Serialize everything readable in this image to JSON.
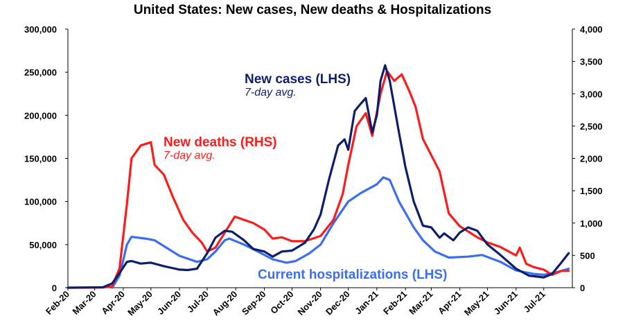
{
  "chart_data": {
    "type": "line",
    "title": "United States: New cases, New deaths & Hospitalizations",
    "x_ticks": [
      "Feb-20",
      "Mar-20",
      "Apr-20",
      "May-20",
      "Jun-20",
      "Jul-20",
      "Aug-20",
      "Sep-20",
      "Oct-20",
      "Nov-20",
      "Dec-20",
      "Jan-21",
      "Feb-21",
      "Mar-21",
      "Apr-21",
      "May-21",
      "Jun-21",
      "Jul-21"
    ],
    "x_range": [
      "2020-02-01",
      "2021-08-01"
    ],
    "y_left": {
      "min": 0,
      "max": 300000,
      "step": 50000,
      "tick_labels": [
        "0",
        "50,000",
        "100,000",
        "150,000",
        "200,000",
        "250,000",
        "300,000"
      ]
    },
    "y_right": {
      "min": 0,
      "max": 4000,
      "step": 500,
      "tick_labels": [
        "0",
        "500",
        "1,000",
        "1,500",
        "2,000",
        "2,500",
        "3,000",
        "3,500",
        "4,000"
      ]
    },
    "annotations": {
      "cases": "New cases (LHS)",
      "cases_sub": "7-day avg.",
      "deaths": "New deaths (RHS)",
      "deaths_sub": "7-day avg.",
      "hosp": "Current hospitalizations (LHS)"
    },
    "colors": {
      "cases": "#0d1f6b",
      "deaths": "#ff1a1a",
      "hosp": "#3a6df0"
    },
    "series": [
      {
        "name": "New cases (LHS)",
        "axis": "left",
        "color": "#0d1f6b",
        "points": [
          [
            "2020-02-01",
            0
          ],
          [
            "2020-03-10",
            500
          ],
          [
            "2020-03-20",
            5000
          ],
          [
            "2020-03-28",
            17000
          ],
          [
            "2020-04-05",
            30000
          ],
          [
            "2020-04-10",
            31000
          ],
          [
            "2020-04-20",
            28000
          ],
          [
            "2020-05-01",
            29000
          ],
          [
            "2020-05-15",
            25000
          ],
          [
            "2020-06-01",
            21000
          ],
          [
            "2020-06-10",
            20500
          ],
          [
            "2020-06-20",
            22000
          ],
          [
            "2020-07-01",
            40000
          ],
          [
            "2020-07-10",
            58000
          ],
          [
            "2020-07-20",
            66000
          ],
          [
            "2020-07-28",
            65000
          ],
          [
            "2020-08-10",
            55000
          ],
          [
            "2020-08-20",
            45000
          ],
          [
            "2020-09-01",
            42000
          ],
          [
            "2020-09-10",
            36000
          ],
          [
            "2020-09-20",
            42000
          ],
          [
            "2020-10-01",
            43000
          ],
          [
            "2020-10-15",
            52000
          ],
          [
            "2020-10-25",
            68000
          ],
          [
            "2020-11-01",
            85000
          ],
          [
            "2020-11-10",
            125000
          ],
          [
            "2020-11-20,",
            165000
          ],
          [
            "2020-11-27",
            172000
          ],
          [
            "2020-12-01",
            160000
          ],
          [
            "2020-12-08",
            205000
          ],
          [
            "2020-12-15",
            214000
          ],
          [
            "2020-12-20",
            220000
          ],
          [
            "2020-12-27",
            180000
          ],
          [
            "2021-01-01",
            200000
          ],
          [
            "2021-01-05",
            240000
          ],
          [
            "2021-01-10",
            258000
          ],
          [
            "2021-01-15",
            240000
          ],
          [
            "2021-01-25",
            180000
          ],
          [
            "2021-02-01",
            140000
          ],
          [
            "2021-02-10",
            100000
          ],
          [
            "2021-02-20",
            72000
          ],
          [
            "2021-03-01",
            70000
          ],
          [
            "2021-03-10",
            58000
          ],
          [
            "2021-03-15",
            63000
          ],
          [
            "2021-03-25",
            55000
          ],
          [
            "2021-04-01",
            64000
          ],
          [
            "2021-04-10",
            70000
          ],
          [
            "2021-04-20",
            66000
          ],
          [
            "2021-05-01",
            50000
          ],
          [
            "2021-05-15",
            38000
          ],
          [
            "2021-06-01",
            22000
          ],
          [
            "2021-06-15",
            14000
          ],
          [
            "2021-07-01",
            12000
          ],
          [
            "2021-07-10",
            16000
          ],
          [
            "2021-07-20",
            29000
          ],
          [
            "2021-07-28",
            40000
          ]
        ]
      },
      {
        "name": "New deaths (RHS)",
        "axis": "right",
        "color": "#ff1a1a",
        "points": [
          [
            "2020-02-01",
            0
          ],
          [
            "2020-03-10",
            3
          ],
          [
            "2020-03-20",
            20
          ],
          [
            "2020-03-28",
            300
          ],
          [
            "2020-04-05",
            1300
          ],
          [
            "2020-04-10",
            2000
          ],
          [
            "2020-04-20",
            2200
          ],
          [
            "2020-05-01",
            2250
          ],
          [
            "2020-05-05",
            1900
          ],
          [
            "2020-05-15",
            1750
          ],
          [
            "2020-05-25",
            1400
          ],
          [
            "2020-06-05",
            1050
          ],
          [
            "2020-06-15",
            850
          ],
          [
            "2020-06-25",
            700
          ],
          [
            "2020-07-01",
            560
          ],
          [
            "2020-07-10",
            620
          ],
          [
            "2020-07-20",
            850
          ],
          [
            "2020-07-31",
            1100
          ],
          [
            "2020-08-10",
            1050
          ],
          [
            "2020-08-20",
            1000
          ],
          [
            "2020-09-01",
            900
          ],
          [
            "2020-09-10",
            760
          ],
          [
            "2020-09-20",
            780
          ],
          [
            "2020-10-01",
            720
          ],
          [
            "2020-10-15",
            720
          ],
          [
            "2020-11-01",
            800
          ],
          [
            "2020-11-15",
            1050
          ],
          [
            "2020-11-25",
            1450
          ],
          [
            "2020-12-01",
            1900
          ],
          [
            "2020-12-10",
            2500
          ],
          [
            "2020-12-20",
            2700
          ],
          [
            "2020-12-27",
            2350
          ],
          [
            "2021-01-05",
            3000
          ],
          [
            "2021-01-12",
            3350
          ],
          [
            "2021-01-20",
            3200
          ],
          [
            "2021-01-28",
            3300
          ],
          [
            "2021-02-05",
            3050
          ],
          [
            "2021-02-12",
            2800
          ],
          [
            "2021-02-20",
            2300
          ],
          [
            "2021-03-01",
            2050
          ],
          [
            "2021-03-10",
            1800
          ],
          [
            "2021-03-20",
            1150
          ],
          [
            "2021-04-01",
            950
          ],
          [
            "2021-04-10",
            870
          ],
          [
            "2021-04-20",
            780
          ],
          [
            "2021-05-01",
            700
          ],
          [
            "2021-05-15",
            630
          ],
          [
            "2021-06-01",
            500
          ],
          [
            "2021-06-05",
            620
          ],
          [
            "2021-06-12",
            370
          ],
          [
            "2021-06-20",
            320
          ],
          [
            "2021-07-01",
            280
          ],
          [
            "2021-07-10",
            200
          ],
          [
            "2021-07-20",
            260
          ],
          [
            "2021-07-28",
            260
          ]
        ]
      },
      {
        "name": "Current hospitalizations (LHS)",
        "axis": "left",
        "color": "#3a6df0",
        "points": [
          [
            "2020-03-20",
            0
          ],
          [
            "2020-03-28",
            14000
          ],
          [
            "2020-04-05",
            50000
          ],
          [
            "2020-04-10",
            59000
          ],
          [
            "2020-04-25",
            57000
          ],
          [
            "2020-05-05",
            55000
          ],
          [
            "2020-05-20",
            45000
          ],
          [
            "2020-06-01",
            37000
          ],
          [
            "2020-06-20",
            30000
          ],
          [
            "2020-07-01",
            33000
          ],
          [
            "2020-07-10",
            42000
          ],
          [
            "2020-07-20",
            55000
          ],
          [
            "2020-07-25",
            57000
          ],
          [
            "2020-08-10",
            50000
          ],
          [
            "2020-08-25",
            42000
          ],
          [
            "2020-09-10",
            33000
          ],
          [
            "2020-09-25",
            29000
          ],
          [
            "2020-10-05",
            31000
          ],
          [
            "2020-10-20",
            40000
          ],
          [
            "2020-11-01",
            50000
          ],
          [
            "2020-11-15",
            75000
          ],
          [
            "2020-12-01",
            100000
          ],
          [
            "2020-12-15",
            110000
          ],
          [
            "2021-01-01",
            120000
          ],
          [
            "2021-01-08",
            128000
          ],
          [
            "2021-01-15",
            125000
          ],
          [
            "2021-01-25",
            100000
          ],
          [
            "2021-02-10",
            70000
          ],
          [
            "2021-02-20",
            55000
          ],
          [
            "2021-03-05",
            42000
          ],
          [
            "2021-03-20",
            35000
          ],
          [
            "2021-04-10",
            36000
          ],
          [
            "2021-04-25",
            38000
          ],
          [
            "2021-05-15",
            30000
          ],
          [
            "2021-06-01",
            20000
          ],
          [
            "2021-06-20",
            16000
          ],
          [
            "2021-07-01",
            15000
          ],
          [
            "2021-07-15",
            18000
          ],
          [
            "2021-07-28",
            22000
          ]
        ]
      }
    ]
  }
}
